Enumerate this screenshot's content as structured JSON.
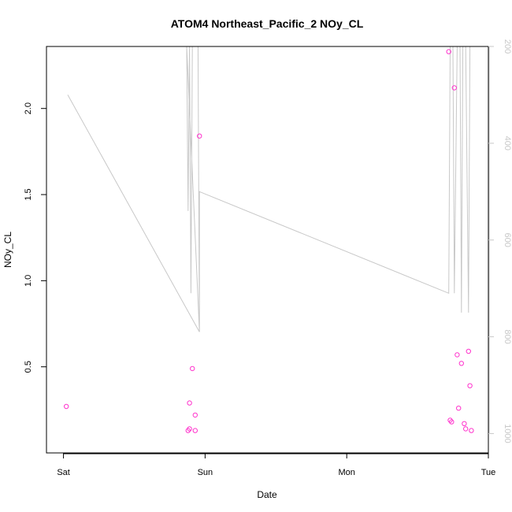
{
  "chart_data": {
    "type": "scatter",
    "title": "ATOM4 Northeast_Pacific_2 NOy_CL",
    "xlabel": "Date",
    "ylabel": "NOy_CL",
    "x_ticks": [
      {
        "label": "Sat",
        "day": 0
      },
      {
        "label": "Sun",
        "day": 1
      },
      {
        "label": "Mon",
        "day": 2
      },
      {
        "label": "Tue",
        "day": 3
      }
    ],
    "y_ticks": [
      "0.5",
      "1.0",
      "1.5",
      "2.0"
    ],
    "y_tick_values": [
      0.5,
      1.0,
      1.5,
      2.0
    ],
    "ylim": [
      0.0,
      2.36
    ],
    "xlim_days": [
      -0.12,
      3.0
    ],
    "y2_ticks": [
      "200",
      "400",
      "600",
      "800",
      "1000"
    ],
    "y2_tick_values": [
      200,
      400,
      600,
      800,
      1000
    ],
    "y2_range": [
      200,
      1040
    ],
    "colors": {
      "points": "#ff33cc",
      "profile_line": "#c8c8c8",
      "right_axis": "#c8c8c8"
    },
    "points": [
      {
        "day": 0.02,
        "value": 0.27
      },
      {
        "day": 0.88,
        "value": 0.13
      },
      {
        "day": 0.89,
        "value": 0.29
      },
      {
        "day": 0.89,
        "value": 0.14
      },
      {
        "day": 0.91,
        "value": 0.49
      },
      {
        "day": 0.93,
        "value": 0.13
      },
      {
        "day": 0.93,
        "value": 0.22
      },
      {
        "day": 0.96,
        "value": 1.84
      },
      {
        "day": 2.72,
        "value": 2.33
      },
      {
        "day": 2.73,
        "value": 0.19
      },
      {
        "day": 2.74,
        "value": 0.18
      },
      {
        "day": 2.76,
        "value": 2.12
      },
      {
        "day": 2.78,
        "value": 0.57
      },
      {
        "day": 2.79,
        "value": 0.26
      },
      {
        "day": 2.81,
        "value": 0.52
      },
      {
        "day": 2.83,
        "value": 0.17
      },
      {
        "day": 2.84,
        "value": 0.14
      },
      {
        "day": 2.86,
        "value": 0.59
      },
      {
        "day": 2.87,
        "value": 0.39
      },
      {
        "day": 2.88,
        "value": 0.13
      }
    ],
    "profile": [
      {
        "day": 0.03,
        "value": 300
      },
      {
        "day": 0.96,
        "value": 790
      },
      {
        "day": 0.87,
        "value": 200
      },
      {
        "day": 0.88,
        "value": 540
      },
      {
        "day": 0.89,
        "value": 200
      },
      {
        "day": 0.9,
        "value": 710
      },
      {
        "day": 0.91,
        "value": 200
      },
      {
        "day": 0.95,
        "value": 200
      },
      {
        "day": 0.96,
        "value": 790
      },
      {
        "day": 0.96,
        "value": 500
      },
      {
        "day": 2.72,
        "value": 710
      },
      {
        "day": 2.73,
        "value": 200
      },
      {
        "day": 2.75,
        "value": 200
      },
      {
        "day": 2.76,
        "value": 710
      },
      {
        "day": 2.78,
        "value": 200
      },
      {
        "day": 2.8,
        "value": 200
      },
      {
        "day": 2.81,
        "value": 750
      },
      {
        "day": 2.82,
        "value": 200
      },
      {
        "day": 2.84,
        "value": 200
      },
      {
        "day": 2.86,
        "value": 750
      },
      {
        "day": 2.87,
        "value": 200
      }
    ]
  }
}
